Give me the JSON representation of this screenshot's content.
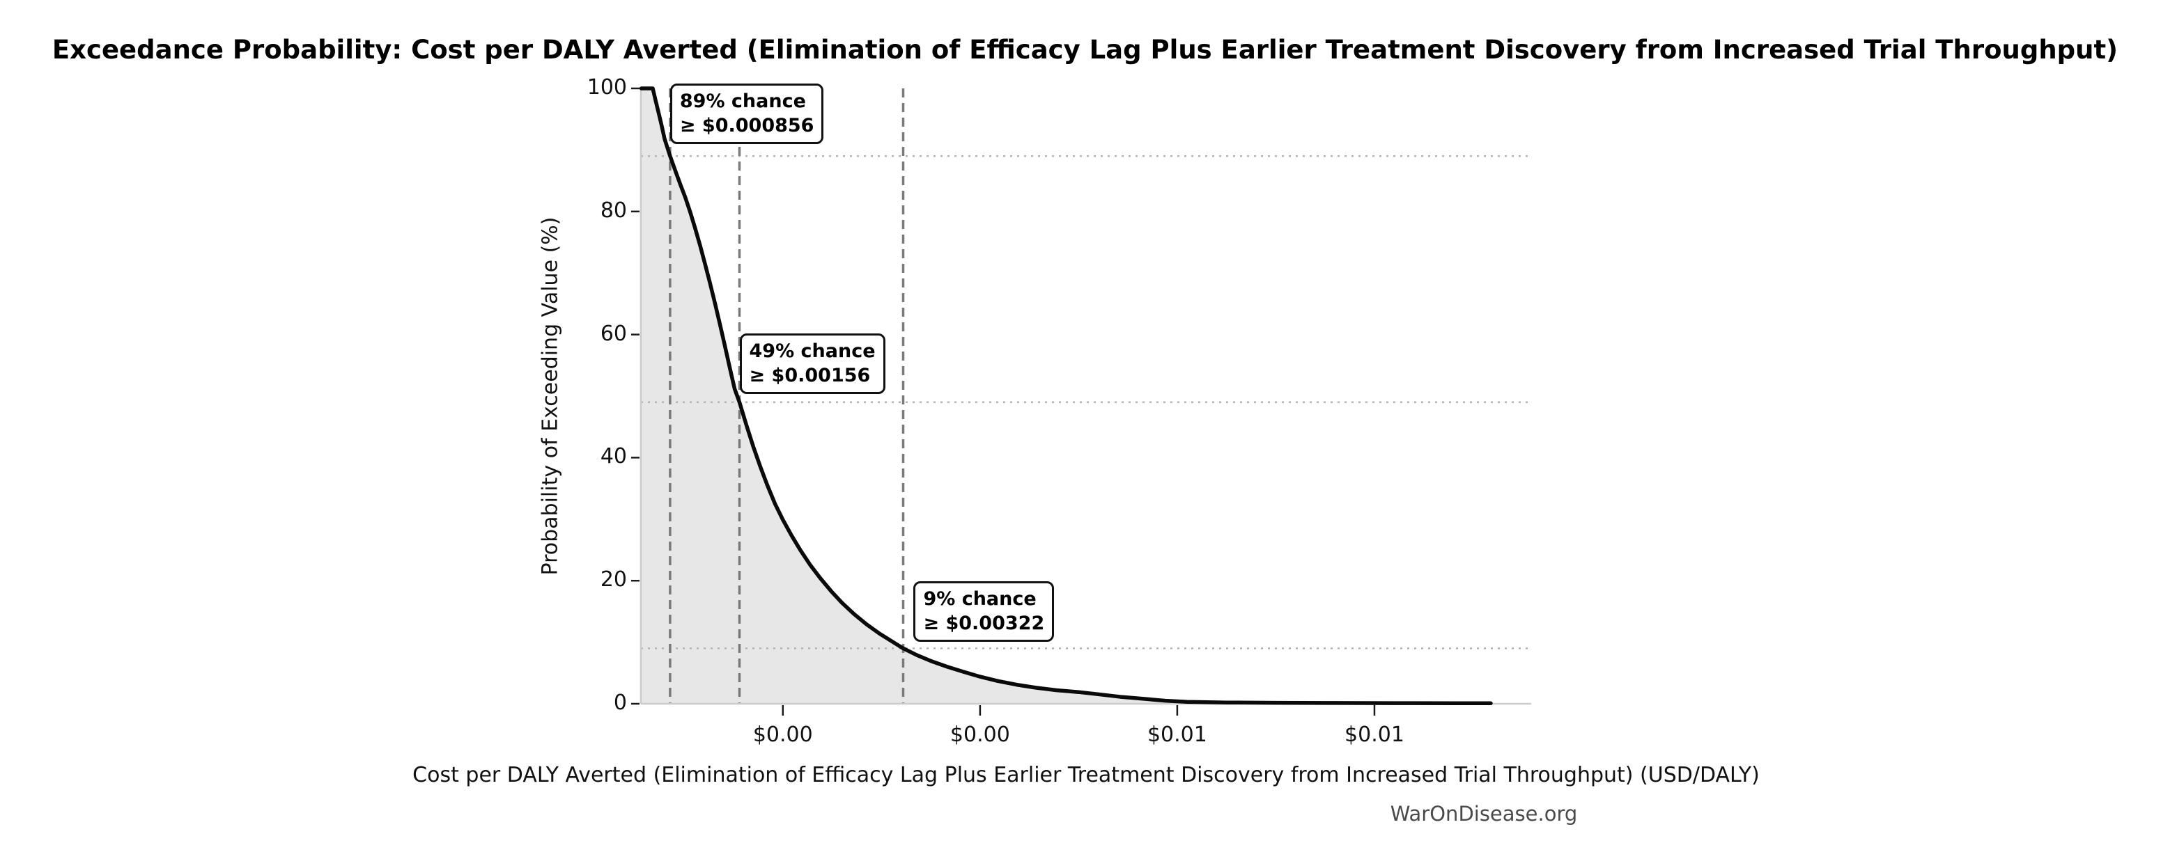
{
  "title": "Exceedance Probability: Cost per DALY Averted (Elimination of Efficacy Lag Plus Earlier Treatment Discovery from Increased Trial Throughput)",
  "footer": "WarOnDisease.org",
  "chart_data": {
    "type": "line",
    "title": "Exceedance Probability: Cost per DALY Averted (Elimination of Efficacy Lag Plus Earlier Treatment Discovery from Increased Trial Throughput)",
    "xlabel": "Cost per DALY Averted (Elimination of Efficacy Lag Plus Earlier Treatment Discovery from Increased Trial Throughput) (USD/DALY)",
    "ylabel": "Probability of Exceeding Value (%)",
    "xlim": [
      0.00056,
      0.00959
    ],
    "ylim": [
      0,
      100
    ],
    "grid": "reference-lines-only",
    "legend": "none",
    "x_ticks": {
      "values": [
        0.002,
        0.004,
        0.006,
        0.008
      ],
      "labels": [
        "$0.00",
        "$0.00",
        "$0.01",
        "$0.01"
      ]
    },
    "y_ticks": {
      "values": [
        0,
        20,
        40,
        60,
        80,
        100
      ],
      "labels": [
        "0",
        "20",
        "40",
        "60",
        "80",
        "100"
      ]
    },
    "dotted_hgridlines_pct": [
      89,
      49,
      9
    ],
    "dashed_vlines_x": [
      0.000856,
      0.00156,
      0.00322
    ],
    "annotations": [
      {
        "line1": "89% chance",
        "line2": "≥ $0.000856",
        "x": 0.000856,
        "top_pct": 100.8,
        "dx": 0
      },
      {
        "line1": "49% chance",
        "line2": "≥ $0.00156",
        "x": 0.00156,
        "top_pct": 60.2,
        "dx": 0
      },
      {
        "line1": "9% chance",
        "line2": "≥ $0.00322",
        "x": 0.00322,
        "top_pct": 19.9,
        "dx": 15
      }
    ],
    "series": [
      {
        "name": "Exceedance probability curve",
        "points": [
          [
            0.000565,
            100
          ],
          [
            0.00068,
            100
          ],
          [
            0.00071,
            98.0
          ],
          [
            0.00074,
            96.0
          ],
          [
            0.00077,
            94.0
          ],
          [
            0.0008,
            91.8
          ],
          [
            0.00083,
            90.3
          ],
          [
            0.000856,
            89.0
          ],
          [
            0.00091,
            86.6
          ],
          [
            0.00096,
            84.4
          ],
          [
            0.00101,
            82.3
          ],
          [
            0.00106,
            79.9
          ],
          [
            0.00111,
            77.3
          ],
          [
            0.00116,
            74.5
          ],
          [
            0.00121,
            71.5
          ],
          [
            0.00126,
            68.4
          ],
          [
            0.00131,
            65.2
          ],
          [
            0.00136,
            61.8
          ],
          [
            0.00141,
            58.3
          ],
          [
            0.00146,
            54.7
          ],
          [
            0.00151,
            51.2
          ],
          [
            0.00156,
            49.0
          ],
          [
            0.00163,
            45.3
          ],
          [
            0.0017,
            41.8
          ],
          [
            0.00177,
            38.6
          ],
          [
            0.00184,
            35.6
          ],
          [
            0.00192,
            32.5
          ],
          [
            0.002,
            29.9
          ],
          [
            0.00209,
            27.3
          ],
          [
            0.00218,
            24.9
          ],
          [
            0.00228,
            22.5
          ],
          [
            0.00238,
            20.4
          ],
          [
            0.00249,
            18.3
          ],
          [
            0.0026,
            16.4
          ],
          [
            0.00272,
            14.6
          ],
          [
            0.00285,
            12.9
          ],
          [
            0.00298,
            11.4
          ],
          [
            0.0031,
            10.2
          ],
          [
            0.00322,
            9.0
          ],
          [
            0.00336,
            7.9
          ],
          [
            0.00351,
            6.9
          ],
          [
            0.00367,
            6.0
          ],
          [
            0.00383,
            5.2
          ],
          [
            0.004,
            4.4
          ],
          [
            0.00418,
            3.7
          ],
          [
            0.00437,
            3.1
          ],
          [
            0.00457,
            2.6
          ],
          [
            0.00478,
            2.2
          ],
          [
            0.005,
            1.9
          ],
          [
            0.00522,
            1.5
          ],
          [
            0.00544,
            1.1
          ],
          [
            0.00566,
            0.8
          ],
          [
            0.00588,
            0.5
          ],
          [
            0.0061,
            0.3
          ],
          [
            0.0065,
            0.2
          ],
          [
            0.007,
            0.16
          ],
          [
            0.0076,
            0.13
          ],
          [
            0.0082,
            0.1
          ],
          [
            0.0088,
            0.09
          ],
          [
            0.00918,
            0.08
          ]
        ]
      }
    ],
    "colors": {
      "curve": "#0a0a0a",
      "area_fill": "#e7e7e7",
      "dashed_vline": "#7a7a7a",
      "dotted_gridline": "#b3b3b3",
      "spine": "#cccccc",
      "tick": "#1a1a1a",
      "annotation_border": "#111111",
      "footer_text": "#4a4a4a"
    }
  }
}
